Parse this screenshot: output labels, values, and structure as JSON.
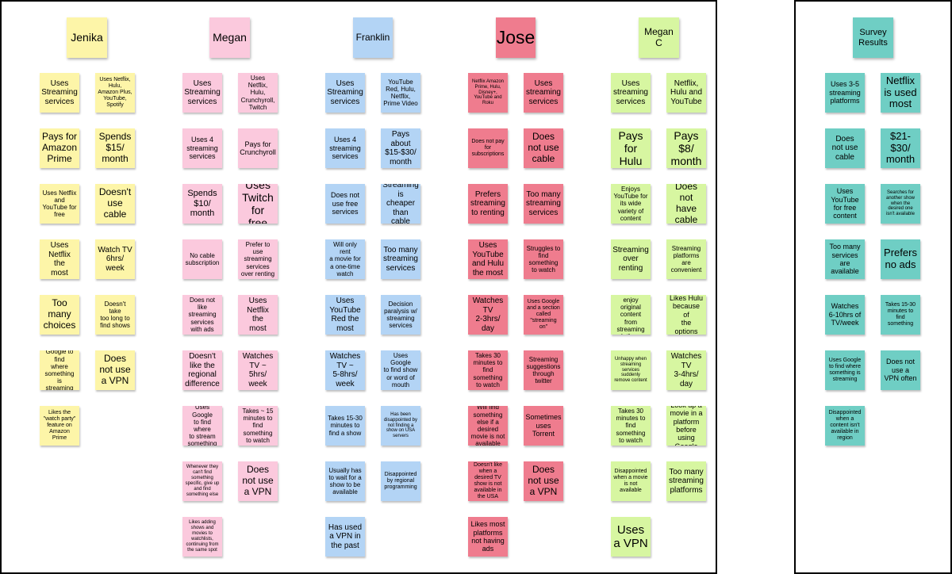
{
  "colors": {
    "jenika": "#fdf5a8",
    "megan": "#fbc9dd",
    "franklin": "#b3d4f5",
    "jose": "#ef7c8e",
    "megan_c": "#d7f6a1",
    "survey": "#6fcec4"
  },
  "columns": [
    {
      "key": "jenika",
      "header": "Jenika",
      "notes": [
        [
          "Uses\nStreaming\nservices",
          "Uses Netflix,\nHulu,\nAmazon Plus,\nYouTube,\nSpotify"
        ],
        [
          "Pays for\nAmazon\nPrime",
          "Spends\n$15/\nmonth"
        ],
        [
          "Uses Netflix\nand\nYouTube for\nfree",
          "Doesn't\nuse\ncable"
        ],
        [
          "Uses\nNetflix the\nmost",
          "Watch TV\n6hrs/\nweek"
        ],
        [
          "Too\nmany\nchoices",
          "Doesn't take\ntoo long to\nfind shows"
        ],
        [
          "Has used\nGoogle to find\nwhere\nsomething is\nstreaming\nbefore",
          "Does\nnot use\na VPN"
        ],
        [
          "Likes the\n\"watch party\"\nfeature on\nAmazon Prime",
          null
        ]
      ]
    },
    {
      "key": "megan",
      "header": "Megan",
      "notes": [
        [
          "Uses\nStreaming\nservices",
          "Uses Netflix,\nHulu,\nCrunchyroll,\nTwitch"
        ],
        [
          "Uses 4\nstreaming\nservices",
          "Pays for\nCrunchyroll"
        ],
        [
          "Spends\n$10/\nmonth",
          "Uses\nTwitch\nfor free"
        ],
        [
          "No cable\nsubscription",
          "Prefer to use\nstreaming\nservices\nover renting"
        ],
        [
          "Does not like\nstreaming\nservices\nwith ads",
          "Uses\nNetflix the\nmost"
        ],
        [
          "Doesn't\nlike the\nregional\ndifference",
          "Watches\nTV ~\n5hrs/\nweek"
        ],
        [
          "Uses Google\nto find where\nto stream\nsomething",
          "Takes ~ 15\nminutes to\nfind\nsomething\nto watch"
        ],
        [
          "Whenever they\ncan't find\nsomething\nspecific, give up\nand find\nsomething else",
          "Does\nnot use\na VPN"
        ],
        [
          "Likes adding\nshows and\nmovies to\nwatchlists,\ncontinuing from\nthe same spot",
          null
        ]
      ]
    },
    {
      "key": "franklin",
      "header": "Franklin",
      "notes": [
        [
          "Uses\nStreaming\nservices",
          "YouTube\nRed, Hulu,\nNetflix,\nPrime Video"
        ],
        [
          "Uses 4\nstreaming\nservices",
          "Pays\nabout\n$15-$30/\nmonth"
        ],
        [
          "Does not\nuse free\nservices",
          "Streaming\nis cheaper\nthan\ncable"
        ],
        [
          "Will only rent\na movie for\na one-time\nwatch",
          "Too many\nstreaming\nservices"
        ],
        [
          "Uses\nYouTube\nRed the\nmost",
          "Decision\nparalysis w/\nstreaming\nservices"
        ],
        [
          "Watches\nTV ~\n5-8hrs/\nweek",
          "Uses Google\nto find show\nor word of\nmouth"
        ],
        [
          "Takes 15-30\nminutes to\nfind a show",
          "Has been\ndisappointed by\nnot finding a\nshow on USA\nservers"
        ],
        [
          "Usually has\nto wait for a\nshow to be\navailable",
          "Disappointed\nby regional\nprogramming"
        ],
        [
          "Has used\na VPN in\nthe past",
          null
        ]
      ]
    },
    {
      "key": "jose",
      "header": "Jose",
      "notes": [
        [
          "Netflix Amazon\nPrime, Hulu,\nDisney+,\nYouTube and\nRoku",
          "Uses\nstreaming\nservices"
        ],
        [
          "Does not pay\nfor\nsubscriptions",
          "Does\nnot use\ncable"
        ],
        [
          "Prefers\nstreaming\nto renting",
          "Too many\nstreaming\nservices"
        ],
        [
          "Uses\nYouTube\nand Hulu\nthe most",
          "Struggles to\nfind\nsomething\nto watch"
        ],
        [
          "Watches\nTV\n2-3hrs/\nday",
          "Uses Google\nand a section\ncalled\n\"streaming\non\""
        ],
        [
          "Takes 30\nminutes to\nfind\nsomething\nto watch",
          "Streaming\nsuggestions\nthrough\ntwitter"
        ],
        [
          "Will find\nsomething\nelse if a\ndesired\nmovie is not\navailable",
          "Sometimes\nuses\nTorrent"
        ],
        [
          "Doesn't like\nwhen a\ndesired TV\nshow is not\navailable in\nthe USA",
          "Does\nnot use\na VPN"
        ],
        [
          "Likes most\nplatforms\nnot having\nads",
          null
        ]
      ]
    },
    {
      "key": "megan_c",
      "header": "Megan\nC",
      "notes": [
        [
          "Uses\nstreaming\nservices",
          "Netflix,\nHulu and\nYouTube"
        ],
        [
          "Pays\nfor\nHulu",
          "Pays\n$8/\nmonth"
        ],
        [
          "Enjoys\nYouTube for\nits wide\nvariety of\ncontent",
          "Does\nnot have\ncable"
        ],
        [
          "Streaming\nover\nrenting",
          "Streaming\nplatforms\nare\nconvenient"
        ],
        [
          "Does not\nenjoy original\ncontent from\nstreaming\nplatforms",
          "Likes Hulu\nbecause of\nthe options"
        ],
        [
          "Unhappy when\nstreaming\nservices\nsuddenly\nremove content",
          "Watches\nTV\n3-4hrs/\nday"
        ],
        [
          "Takes 30\nminutes to\nfind\nsomething\nto watch",
          "Look up a\nmovie in a\nplatform\nbefore using\nGoogle"
        ],
        [
          "Disappointed\nwhen a movie\nis not\navailable",
          "Too many\nstreaming\nplatforms"
        ],
        [
          "Uses\na VPN",
          null
        ]
      ]
    },
    {
      "key": "survey",
      "header": "Survey\nResults",
      "notes": [
        [
          "Uses 3-5\nstreaming\nplatforms",
          "Netflix\nis used\nmost"
        ],
        [
          "Does\nnot use\ncable",
          "$21-\n$30/\nmonth"
        ],
        [
          "Uses\nYouTube\nfor free\ncontent",
          "Searches for\nanother show\nwhen the\ndesired one\nisn't available"
        ],
        [
          "Too many\nservices\nare\navailable",
          "Prefers\nno ads"
        ],
        [
          "Watches\n6-10hrs of\nTV/week",
          "Takes 15-30\nminutes to\nfind\nsomething"
        ],
        [
          "Uses Google\nto find where\nsomething is\nstreaming",
          "Does not\nuse a\nVPN often"
        ],
        [
          "Disappointed\nwhen a\ncontent isn't\navailable in\nregion",
          null
        ]
      ]
    }
  ]
}
